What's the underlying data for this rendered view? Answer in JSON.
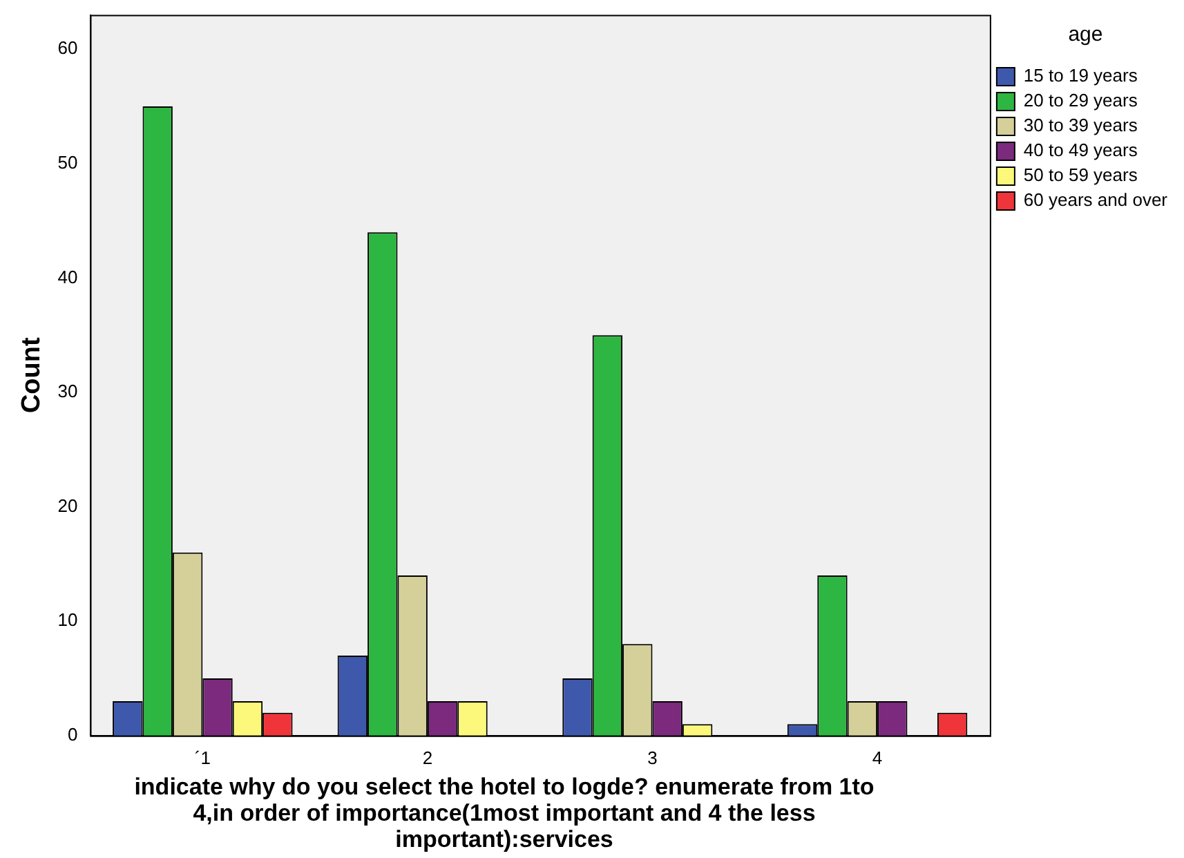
{
  "chart_data": {
    "type": "bar",
    "xlabel": "indicate why do you select the hotel to logde? enumerate from 1to 4,in order of importance(1most important and 4 the less important):services",
    "ylabel": "Count",
    "legend_title": "age",
    "categories": [
      "´1",
      "2",
      "3",
      "4"
    ],
    "series": [
      {
        "name": "15 to 19 years",
        "color": "#3e58ac",
        "values": [
          3,
          7,
          5,
          1
        ]
      },
      {
        "name": "20 to 29 years",
        "color": "#2db642",
        "values": [
          55,
          44,
          35,
          14
        ]
      },
      {
        "name": "30 to 39 years",
        "color": "#d5cf99",
        "values": [
          16,
          14,
          8,
          3
        ]
      },
      {
        "name": "40 to 49 years",
        "color": "#7b2a7d",
        "values": [
          5,
          3,
          3,
          3
        ]
      },
      {
        "name": "50 to 59 years",
        "color": "#fbf87c",
        "values": [
          3,
          3,
          1,
          null
        ]
      },
      {
        "name": "60 years and over",
        "color": "#f0353a",
        "values": [
          2,
          null,
          null,
          2
        ]
      }
    ],
    "ylim": [
      0,
      63
    ],
    "yticks": [
      0,
      10,
      20,
      30,
      40,
      50,
      60
    ],
    "grid": false,
    "legend": "top right"
  }
}
